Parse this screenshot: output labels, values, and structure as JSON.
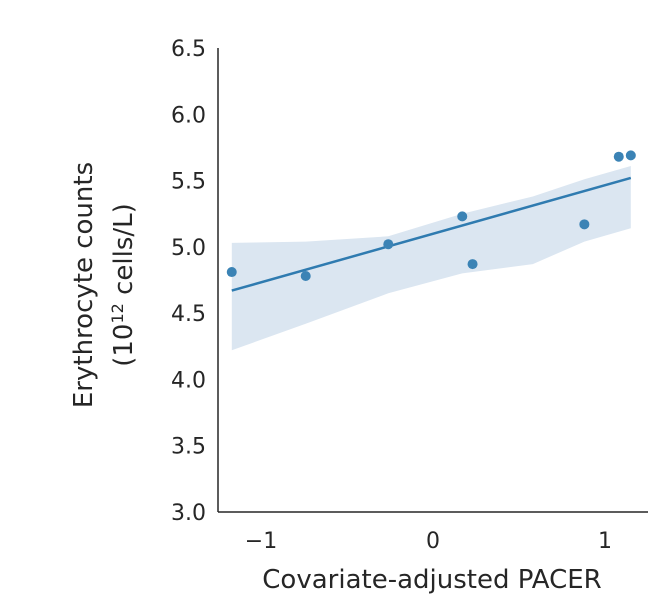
{
  "chart_data": {
    "type": "scatter",
    "title": "",
    "xlabel": "Covariate-adjusted PACER",
    "ylabel_line1": "Erythrocyte counts",
    "ylabel_line2_prefix": "(10",
    "ylabel_line2_sup": "12",
    "ylabel_line2_suffix": " cells/L)",
    "xlim": [
      -1.25,
      1.25
    ],
    "ylim": [
      3.0,
      6.5
    ],
    "xticks": [
      -1,
      0,
      1
    ],
    "xtick_labels": [
      "−1",
      "0",
      "1"
    ],
    "yticks": [
      3.0,
      3.5,
      4.0,
      4.5,
      5.0,
      5.5,
      6.0,
      6.5
    ],
    "ytick_labels": [
      "3.0",
      "3.5",
      "4.0",
      "4.5",
      "5.0",
      "5.5",
      "6.0",
      "6.5"
    ],
    "points": {
      "x": [
        -1.17,
        -0.74,
        -0.26,
        0.17,
        0.23,
        0.88,
        1.08,
        1.15
      ],
      "y": [
        4.81,
        4.78,
        5.02,
        5.23,
        4.87,
        5.17,
        5.68,
        5.69
      ]
    },
    "regression": {
      "x": [
        -1.17,
        1.15
      ],
      "y": [
        4.67,
        5.52
      ]
    },
    "confidence_band": {
      "x": [
        -1.17,
        -0.74,
        -0.26,
        0.17,
        0.58,
        0.88,
        1.15
      ],
      "upper": [
        5.03,
        5.04,
        5.08,
        5.25,
        5.38,
        5.51,
        5.61
      ],
      "lower": [
        4.22,
        4.42,
        4.65,
        4.8,
        4.87,
        5.04,
        5.14
      ]
    },
    "colors": {
      "points": "#3b83b5",
      "line": "#2f7bb0",
      "band": "#dbe6f1",
      "axis": "#262626"
    }
  }
}
